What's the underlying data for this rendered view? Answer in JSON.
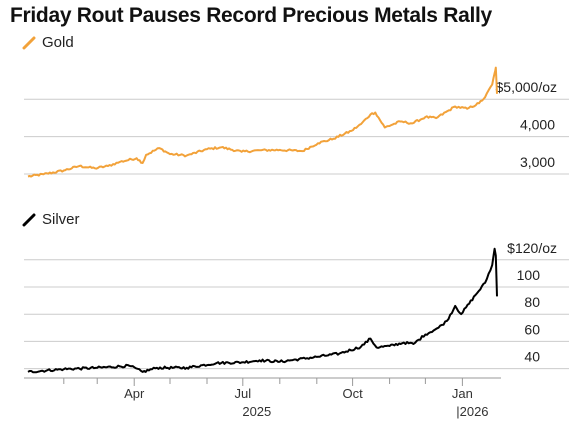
{
  "title": "Friday Rout Pauses Record Precious Metals Rally",
  "legend": {
    "gold": "Gold",
    "silver": "Silver"
  },
  "colors": {
    "gold": "#f2a23a",
    "silver": "#000000",
    "grid": "#cccccc",
    "axis": "#999999"
  },
  "x_axis": {
    "ticks": [
      {
        "date": "2025-04-01",
        "label": "Apr"
      },
      {
        "date": "2025-07-01",
        "label": "Jul"
      },
      {
        "date": "2025-10-01",
        "label": "Oct"
      },
      {
        "date": "2026-01-01",
        "label": "Jan"
      }
    ],
    "years": [
      {
        "date": "2025-07-01",
        "label": "2025"
      },
      {
        "date": "2026-01-01",
        "label": "|2026"
      }
    ]
  },
  "chart_data": [
    {
      "type": "line",
      "series": [
        {
          "name": "Gold",
          "x": [
            "2025-01-02",
            "2025-01-15",
            "2025-02-01",
            "2025-02-14",
            "2025-02-27",
            "2025-03-10",
            "2025-03-20",
            "2025-04-03",
            "2025-04-08",
            "2025-04-11",
            "2025-04-22",
            "2025-05-01",
            "2025-05-15",
            "2025-06-01",
            "2025-06-13",
            "2025-06-30",
            "2025-07-15",
            "2025-08-01",
            "2025-08-20",
            "2025-09-02",
            "2025-09-15",
            "2025-09-30",
            "2025-10-08",
            "2025-10-16",
            "2025-10-20",
            "2025-10-28",
            "2025-11-10",
            "2025-11-20",
            "2025-12-01",
            "2025-12-10",
            "2025-12-26",
            "2026-01-05",
            "2026-01-15",
            "2026-01-20",
            "2026-01-26",
            "2026-01-28",
            "2026-01-29",
            "2026-01-30"
          ],
          "values": [
            2640,
            2700,
            2800,
            2920,
            2860,
            2920,
            3030,
            3130,
            3000,
            3220,
            3400,
            3240,
            3200,
            3370,
            3420,
            3300,
            3340,
            3350,
            3320,
            3530,
            3650,
            3860,
            4040,
            4300,
            4350,
            3950,
            4110,
            4060,
            4230,
            4200,
            4510,
            4450,
            4600,
            4760,
            5100,
            5400,
            5550,
            4850
          ]
        }
      ],
      "y_ticks": [
        "$5,000/oz",
        "4,000",
        "3,000"
      ],
      "ylim": [
        2600,
        5700
      ],
      "grid": true
    },
    {
      "type": "line",
      "series": [
        {
          "name": "Silver",
          "x": [
            "2025-01-02",
            "2025-02-01",
            "2025-03-01",
            "2025-03-28",
            "2025-04-08",
            "2025-04-20",
            "2025-05-15",
            "2025-06-09",
            "2025-06-30",
            "2025-07-15",
            "2025-08-01",
            "2025-09-01",
            "2025-09-20",
            "2025-10-08",
            "2025-10-16",
            "2025-10-21",
            "2025-11-01",
            "2025-11-13",
            "2025-11-21",
            "2025-12-01",
            "2025-12-12",
            "2025-12-19",
            "2025-12-26",
            "2025-12-31",
            "2026-01-12",
            "2026-01-20",
            "2026-01-26",
            "2026-01-28",
            "2026-01-29",
            "2026-01-30"
          ],
          "values": [
            29.5,
            31.5,
            32.5,
            34,
            29.5,
            32.5,
            32.5,
            36,
            36.5,
            38,
            37,
            40.5,
            43,
            48,
            54,
            47.5,
            48.5,
            51,
            50,
            57,
            62,
            67,
            78,
            72,
            86,
            95,
            108,
            120,
            115,
            85
          ]
        }
      ],
      "y_ticks": [
        "$120/oz",
        "100",
        "80",
        "60",
        "40"
      ],
      "ylim": [
        25,
        125
      ],
      "grid": true
    }
  ]
}
